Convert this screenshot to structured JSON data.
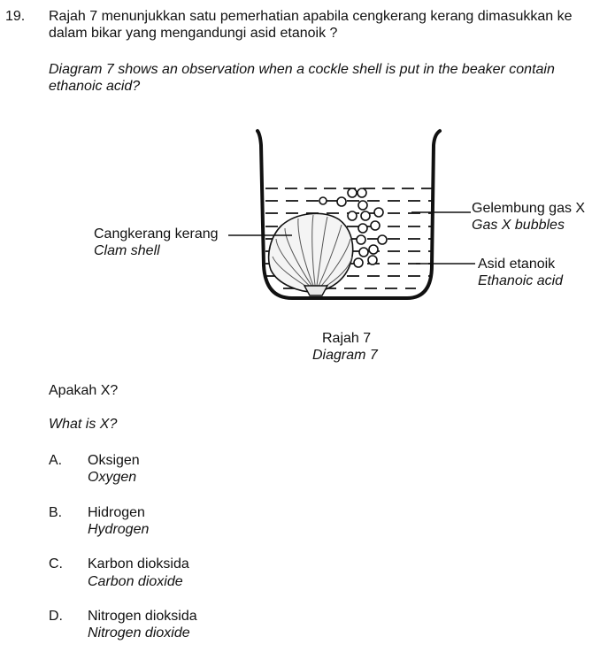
{
  "question": {
    "number": "19.",
    "stem_malay_line1": "Rajah 7 menunjukkan  satu pemerhatian apabila cengkerang kerang dimasukkan ke",
    "stem_malay_line2": "dalam bikar yang mengandungi asid etanoik ?",
    "stem_english_line1": "Diagram 7 shows an observation when a cockle shell is put in the beaker contain",
    "stem_english_line2": "ethanoic acid?"
  },
  "diagram": {
    "label_shell_malay": "Cangkerang kerang",
    "label_shell_english": "Clam shell",
    "label_gas_malay": "Gelembung gas X",
    "label_gas_english": "Gas X bubbles",
    "label_acid_malay": "Asid etanoik",
    "label_acid_english": "Ethanoic acid",
    "caption_malay": "Rajah 7",
    "caption_english": "Diagram 7"
  },
  "prompt": {
    "malay": "Apakah X?",
    "english": "What is X?"
  },
  "options": [
    {
      "letter": "A.",
      "malay": "Oksigen",
      "english": "Oxygen"
    },
    {
      "letter": "B.",
      "malay": "Hidrogen",
      "english": "Hydrogen"
    },
    {
      "letter": "C.",
      "malay": "Karbon dioksida",
      "english": "Carbon dioxide"
    },
    {
      "letter": "D.",
      "malay": "Nitrogen dioksida",
      "english": "Nitrogen dioxide"
    }
  ]
}
